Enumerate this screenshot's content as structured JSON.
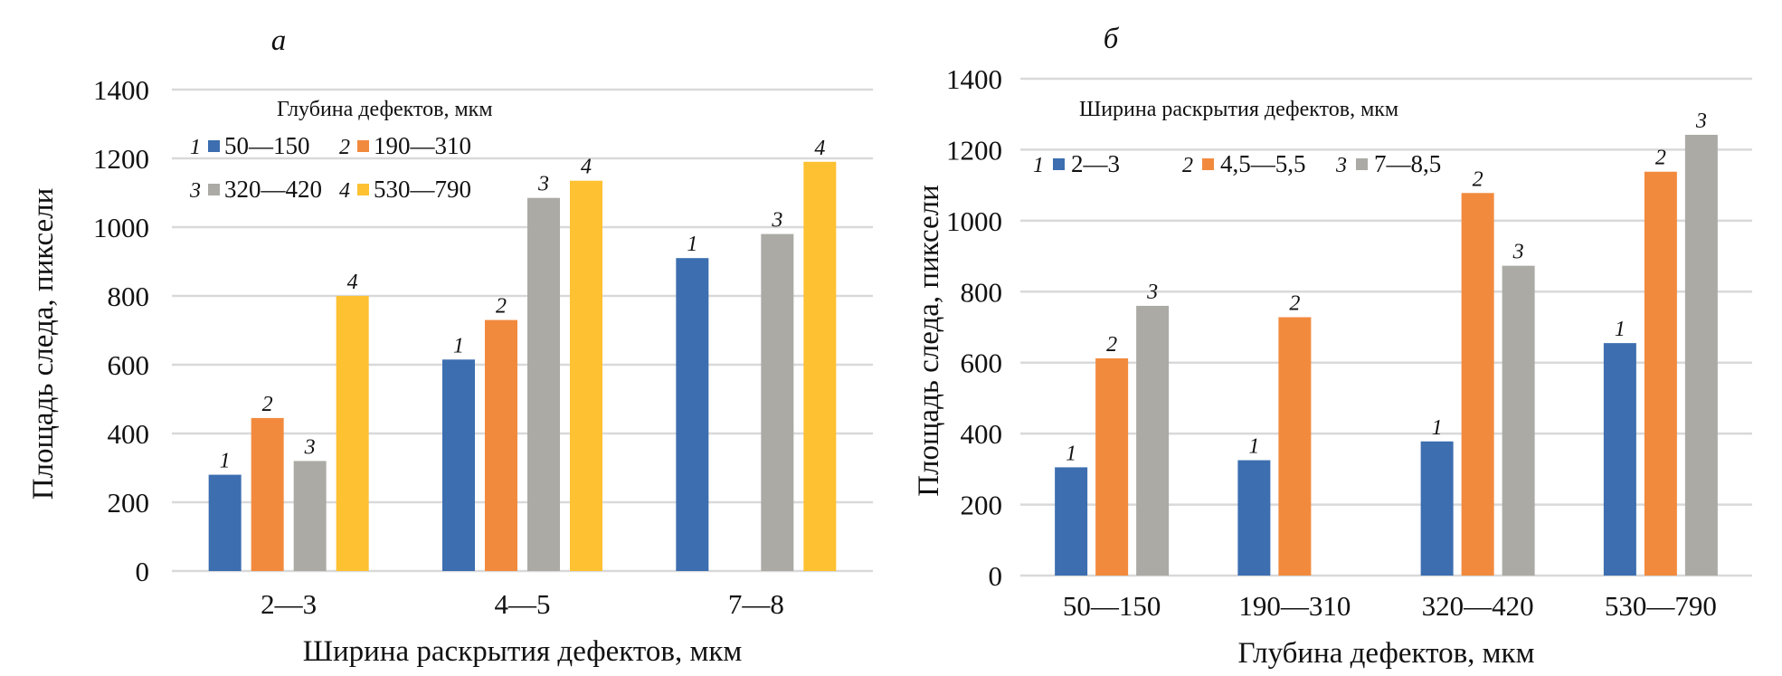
{
  "chart_data": [
    {
      "type": "bar",
      "panel_label": "а",
      "title": "",
      "xlabel": "Ширина раскрытия дефектов, мкм",
      "ylabel": "Площадь следа, пиксели",
      "ylim": [
        0,
        1400
      ],
      "yticks": [
        0,
        200,
        400,
        600,
        800,
        1000,
        1200,
        1400
      ],
      "grid": true,
      "categories": [
        "2—3",
        "4—5",
        "7—8"
      ],
      "legend": {
        "title": "Глубина дефектов, мкм",
        "placement": "top-left"
      },
      "series": [
        {
          "num": "1",
          "name": "50—150",
          "color": "#3C6EB0",
          "values": [
            280,
            615,
            910
          ]
        },
        {
          "num": "2",
          "name": "190—310",
          "color": "#F28A3E",
          "values": [
            445,
            730,
            null
          ]
        },
        {
          "num": "3",
          "name": "320—420",
          "color": "#ABAAA5",
          "values": [
            320,
            1085,
            980
          ]
        },
        {
          "num": "4",
          "name": "530—790",
          "color": "#FDC132",
          "values": [
            800,
            1135,
            1190
          ]
        }
      ]
    },
    {
      "type": "bar",
      "panel_label": "б",
      "title": "",
      "xlabel": "Глубина дефектов, мкм",
      "ylabel": "Площадь следа, пиксели",
      "ylim": [
        0,
        1400
      ],
      "yticks": [
        0,
        200,
        400,
        600,
        800,
        1000,
        1200,
        1400
      ],
      "grid": true,
      "categories": [
        "50—150",
        "190—310",
        "320—420",
        "530—790"
      ],
      "legend": {
        "title": "Ширина раскрытия дефектов, мкм",
        "placement": "top-left"
      },
      "series": [
        {
          "num": "1",
          "name": "2—3",
          "color": "#3C6EB0",
          "values": [
            305,
            325,
            378,
            655
          ]
        },
        {
          "num": "2",
          "name": "4,5—5,5",
          "color": "#F28A3E",
          "values": [
            612,
            728,
            1078,
            1138
          ]
        },
        {
          "num": "3",
          "name": "7—8,5",
          "color": "#ABAAA5",
          "values": [
            760,
            null,
            873,
            1242
          ]
        }
      ]
    }
  ]
}
